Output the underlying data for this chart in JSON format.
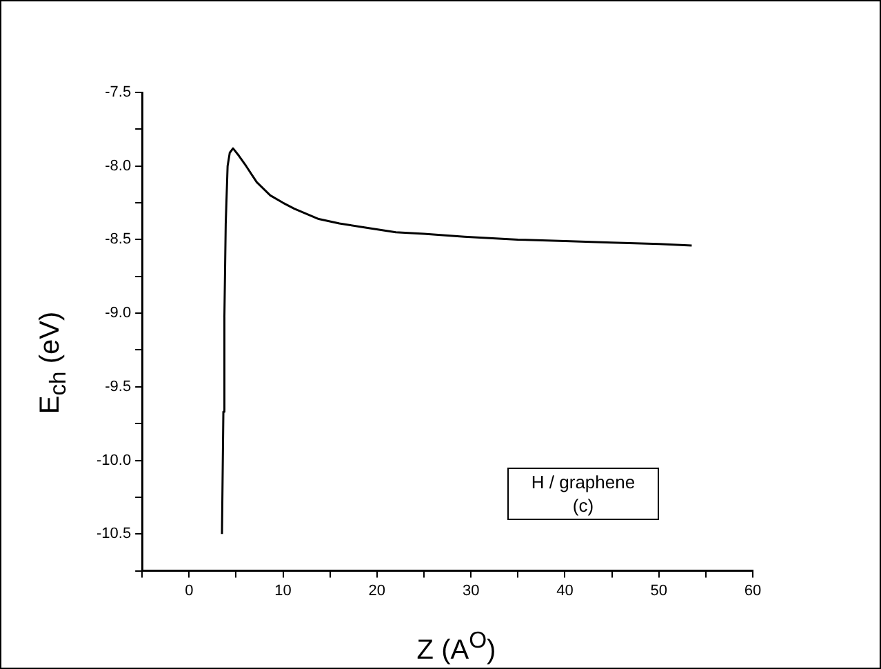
{
  "chart_data": {
    "type": "line",
    "xlabel": "Z (A$^{O}$)",
    "ylabel": "E$_{ch}$ (eV)",
    "annotations": [
      "H / graphene",
      "(c)"
    ],
    "series": [
      {
        "color": "#000000",
        "x": [
          3.5,
          3.65,
          3.76,
          3.9,
          4.1,
          4.33,
          4.68,
          5.3,
          6.07,
          7.2,
          8.65,
          10,
          11.2,
          13.8,
          16,
          18.9,
          22,
          25,
          29.3,
          35,
          40,
          45,
          50,
          53.5
        ],
        "values": [
          -10.5,
          -9.67,
          -9.02,
          -8.39,
          -8.0,
          -7.91,
          -7.88,
          -7.93,
          -8.0,
          -8.11,
          -8.2,
          -8.25,
          -8.29,
          -8.36,
          -8.39,
          -8.42,
          -8.45,
          -8.46,
          -8.48,
          -8.5,
          -8.51,
          -8.52,
          -8.53,
          -8.54
        ]
      }
    ],
    "xlim": [
      -5,
      60
    ],
    "xticks": [
      {
        "value": -5,
        "label": null
      },
      0,
      {
        "value": 5,
        "label": null
      },
      10,
      {
        "value": 15,
        "label": null
      },
      20,
      {
        "value": 25,
        "label": null
      },
      30,
      {
        "value": 35,
        "label": null
      },
      40,
      {
        "value": 45,
        "label": null
      },
      50,
      {
        "value": 55,
        "label": null
      },
      60
    ],
    "ylim": [
      -10.75,
      -7.5
    ],
    "yticks": [
      -7.5,
      {
        "value": -7.75,
        "label": null
      },
      {
        "value": -8,
        "label": "-8.0"
      },
      {
        "value": -8.25,
        "label": null
      },
      -8.5,
      {
        "value": -8.75,
        "label": null
      },
      {
        "value": -9,
        "label": "-9.0"
      },
      {
        "value": -9.25,
        "label": null
      },
      -9.5,
      {
        "value": -9.75,
        "label": null
      },
      {
        "value": -10,
        "label": "-10.0"
      },
      {
        "value": -10.25,
        "label": null
      },
      -10.5,
      {
        "value": -10.75,
        "label": null
      }
    ],
    "grid": false,
    "legend": false,
    "marker": "none",
    "line_style": "solid"
  }
}
